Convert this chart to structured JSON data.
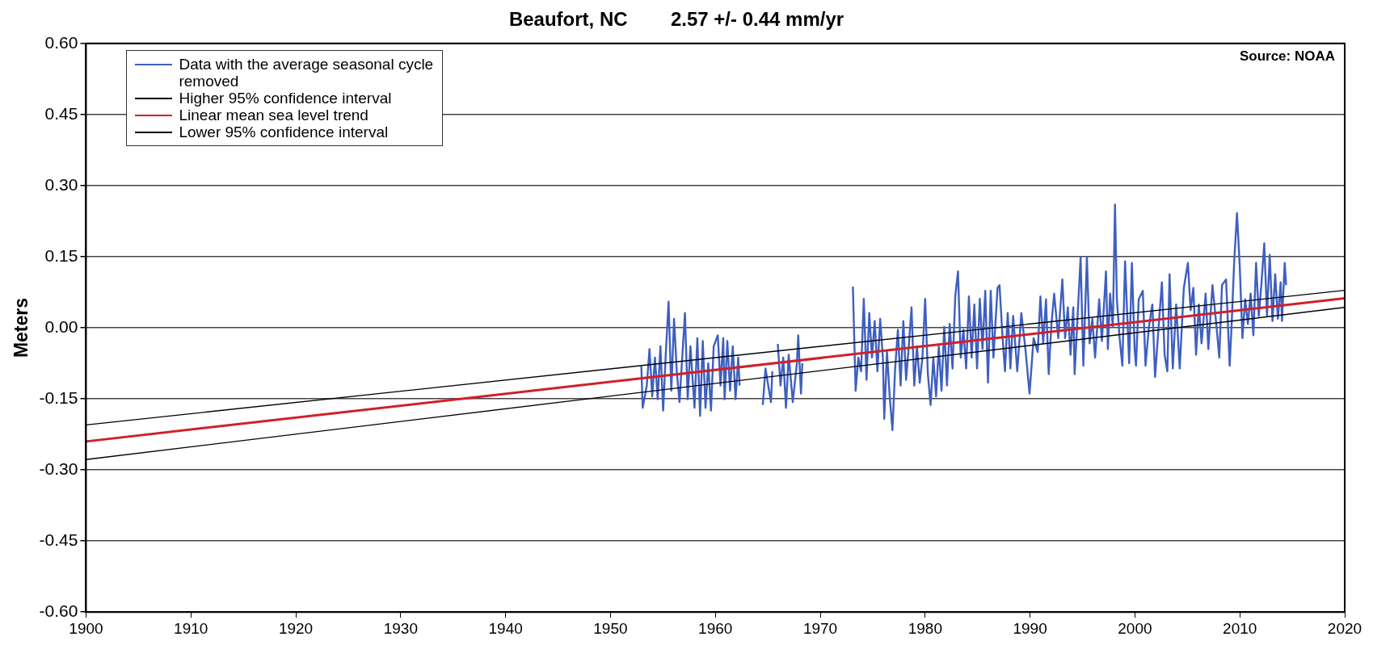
{
  "chart_data": {
    "type": "line",
    "title": "Beaufort, NC        2.57 +/- 0.44 mm/yr",
    "ylabel": "Meters",
    "annotations": [
      "Source: NOAA"
    ],
    "xlim": [
      1900,
      2020
    ],
    "xticks": [
      1900,
      1910,
      1920,
      1930,
      1940,
      1950,
      1960,
      1970,
      1980,
      1990,
      2000,
      2010,
      2020
    ],
    "ylim": [
      -0.6,
      0.6
    ],
    "yticks": [
      {
        "value": -0.6,
        "label": "-0.60"
      },
      {
        "value": -0.45,
        "label": "-0.45"
      },
      {
        "value": -0.3,
        "label": "-0.30"
      },
      {
        "value": -0.15,
        "label": "-0.15"
      },
      {
        "value": 0,
        "label": "0.00"
      },
      {
        "value": 0.15,
        "label": "0.15"
      },
      {
        "value": 0.3,
        "label": "0.30"
      },
      {
        "value": 0.45,
        "label": "0.45"
      },
      {
        "value": 0.6,
        "label": "0.60"
      }
    ],
    "grid": "y",
    "legend": "top left",
    "series": [
      {
        "name": "Data with the average seasonal cycle removed",
        "color": "#3f5fc0",
        "x": [
          1952.94,
          1953.07,
          1953.46,
          1953.72,
          1953.98,
          1954.24,
          1954.5,
          1954.76,
          1955.02,
          1955.28,
          1955.54,
          1955.8,
          1956.06,
          1956.32,
          1956.58,
          1956.84,
          1957.1,
          1957.36,
          1957.62,
          1958.01,
          1958.28,
          1958.54,
          1958.8,
          1959.06,
          1959.32,
          1959.58,
          1959.84,
          1960.23,
          1960.49,
          1960.75,
          1960.88,
          1961.14,
          1961.4,
          1961.66,
          1961.92,
          1962.18,
          1962.31,
          1963.4,
          1964.52,
          1964.78,
          1965.04,
          1965.3,
          1965.43,
          1965.7,
          1965.95,
          1966.21,
          1966.47,
          1966.73,
          1966.99,
          1967.38,
          1967.77,
          1967.9,
          1968.16,
          1968.29,
          1970.5,
          1973.11,
          1973.37,
          1973.63,
          1973.89,
          1974.15,
          1974.41,
          1974.67,
          1974.93,
          1975.19,
          1975.45,
          1975.71,
          1975.97,
          1976.1,
          1976.36,
          1976.62,
          1976.88,
          1977.14,
          1977.4,
          1977.66,
          1977.92,
          1978.18,
          1978.44,
          1978.7,
          1978.96,
          1979.22,
          1979.48,
          1979.74,
          1980.0,
          1980.26,
          1980.52,
          1980.78,
          1981.04,
          1981.3,
          1981.56,
          1981.82,
          1982.08,
          1982.34,
          1982.61,
          1982.87,
          1983.13,
          1983.39,
          1983.65,
          1983.91,
          1984.17,
          1984.43,
          1984.69,
          1984.95,
          1985.21,
          1985.47,
          1985.73,
          1985.99,
          1986.25,
          1986.51,
          1986.9,
          1987.09,
          1987.35,
          1987.61,
          1987.87,
          1988.13,
          1988.39,
          1988.78,
          1989.17,
          1989.56,
          1989.95,
          1990.34,
          1990.73,
          1990.99,
          1991.25,
          1991.52,
          1991.78,
          1992.04,
          1992.3,
          1992.69,
          1993.08,
          1993.34,
          1993.6,
          1993.86,
          1994.12,
          1994.25,
          1994.51,
          1994.82,
          1995.08,
          1995.42,
          1995.68,
          1995.94,
          1996.2,
          1996.59,
          1996.85,
          1997.24,
          1997.42,
          1997.63,
          1997.89,
          1998.1,
          1998.28,
          1998.54,
          1998.8,
          1999.06,
          1999.45,
          1999.71,
          1999.97,
          2000.1,
          2000.36,
          2000.75,
          2001.01,
          2001.33,
          2001.66,
          2001.92,
          2002.18,
          2002.57,
          2002.83,
          2003.09,
          2003.3,
          2003.61,
          2003.93,
          2004.27,
          2004.66,
          2005.05,
          2005.31,
          2005.57,
          2005.83,
          2006.09,
          2006.35,
          2006.74,
          2007.0,
          2007.39,
          2007.78,
          2008.04,
          2008.3,
          2008.69,
          2009.03,
          2009.21,
          2009.47,
          2009.73,
          2009.99,
          2010.25,
          2010.51,
          2010.77,
          2011.03,
          2011.29,
          2011.55,
          2011.81,
          2012.07,
          2012.33,
          2012.59,
          2012.85,
          2013.11,
          2013.37,
          2013.63,
          2013.89,
          2014.02,
          2014.28,
          2014.41
        ],
        "values": [
          -0.081,
          -0.169,
          -0.122,
          -0.045,
          -0.145,
          -0.063,
          -0.151,
          -0.039,
          -0.175,
          -0.051,
          0.055,
          -0.133,
          0.019,
          -0.092,
          -0.157,
          -0.063,
          0.031,
          -0.151,
          -0.039,
          -0.169,
          -0.022,
          -0.186,
          -0.028,
          -0.169,
          -0.075,
          -0.175,
          -0.039,
          -0.016,
          -0.122,
          -0.022,
          -0.151,
          -0.028,
          -0.133,
          -0.039,
          -0.151,
          -0.063,
          -0.122,
          null,
          -0.163,
          -0.086,
          -0.122,
          -0.157,
          -0.092,
          null,
          -0.034,
          -0.122,
          -0.063,
          -0.169,
          -0.057,
          -0.157,
          -0.075,
          -0.016,
          -0.139,
          -0.075,
          null,
          0.087,
          -0.133,
          -0.063,
          -0.092,
          0.061,
          -0.11,
          0.031,
          -0.063,
          0.014,
          -0.092,
          0.019,
          -0.063,
          -0.192,
          -0.051,
          -0.145,
          -0.216,
          -0.086,
          -0.004,
          -0.122,
          0.014,
          -0.11,
          -0.039,
          0.043,
          -0.122,
          -0.039,
          -0.116,
          -0.063,
          0.061,
          -0.098,
          -0.163,
          -0.063,
          -0.145,
          -0.039,
          -0.133,
          0.002,
          -0.122,
          0.008,
          -0.086,
          0.066,
          0.119,
          -0.063,
          -0.004,
          -0.086,
          0.066,
          -0.063,
          0.049,
          -0.086,
          0.061,
          -0.045,
          0.078,
          -0.116,
          0.078,
          -0.063,
          0.084,
          0.09,
          -0.01,
          -0.092,
          0.031,
          -0.086,
          0.025,
          -0.092,
          0.031,
          -0.045,
          -0.139,
          -0.022,
          -0.051,
          0.066,
          -0.033,
          0.06,
          -0.098,
          0.008,
          0.072,
          -0.022,
          0.102,
          -0.022,
          0.043,
          -0.057,
          0.043,
          -0.098,
          0.014,
          0.149,
          -0.08,
          0.149,
          -0.033,
          0.019,
          -0.063,
          0.06,
          -0.028,
          0.119,
          -0.045,
          0.072,
          0.002,
          0.26,
          0.06,
          -0.022,
          -0.08,
          0.14,
          -0.075,
          0.137,
          -0.045,
          -0.08,
          0.06,
          0.078,
          -0.08,
          0.002,
          0.049,
          -0.104,
          -0.022,
          0.096,
          -0.057,
          -0.092,
          0.113,
          -0.086,
          0.049,
          -0.086,
          0.084,
          0.137,
          0.037,
          0.084,
          -0.057,
          0.049,
          -0.033,
          0.072,
          -0.045,
          0.09,
          0.002,
          -0.063,
          0.09,
          0.102,
          -0.08,
          0.002,
          0.143,
          0.242,
          0.131,
          -0.022,
          0.06,
          0.008,
          0.072,
          -0.016,
          0.137,
          0.025,
          0.096,
          0.178,
          0.025,
          0.154,
          0.014,
          0.113,
          0.019,
          0.096,
          0.014,
          0.137,
          0.09
        ]
      },
      {
        "name": "Higher 95% confidence interval",
        "color": "#000000",
        "x": [
          1900,
          2020
        ],
        "values": [
          -0.205,
          0.079
        ]
      },
      {
        "name": "Linear mean sea level trend",
        "color": "#d0202a",
        "x": [
          1900,
          2020
        ],
        "values": [
          -0.24,
          0.062
        ]
      },
      {
        "name": "Lower 95% confidence interval",
        "color": "#000000",
        "x": [
          1900,
          2020
        ],
        "values": [
          -0.278,
          0.043
        ]
      }
    ]
  }
}
